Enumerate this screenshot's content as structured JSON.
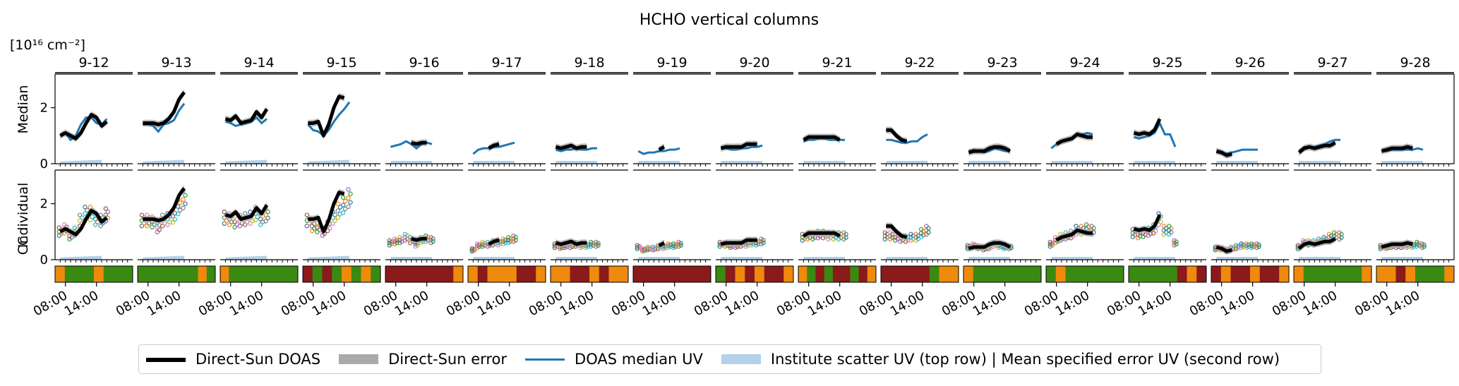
{
  "chart_data": {
    "type": "line",
    "title": "HCHO  vertical columns",
    "unit_label": "[10¹⁶ cm⁻²]",
    "row_labels": [
      "Median",
      "Individual",
      "CC"
    ],
    "days": [
      "9-12",
      "9-13",
      "9-14",
      "9-15",
      "9-16",
      "9-17",
      "9-18",
      "9-19",
      "9-20",
      "9-21",
      "9-22",
      "9-23",
      "9-24",
      "9-25",
      "9-26",
      "9-27",
      "9-28"
    ],
    "x_tick_labels": [
      "08:00",
      "14:00"
    ],
    "x_range_hours": [
      6,
      21
    ],
    "y_range": [
      0,
      3.2
    ],
    "y_ticks": [
      0,
      2
    ],
    "colors": {
      "direct_sun": "#000000",
      "direct_sun_error": "#aaaaaa",
      "doas_median": "#1f77b4",
      "scatter": "#b3d1ea",
      "cc_green": "#3a8a12",
      "cc_orange": "#ef8a0c",
      "cc_darkred": "#8b1a1a"
    },
    "legend": [
      {
        "key": "direct_sun",
        "label": "Direct-Sun DOAS"
      },
      {
        "key": "direct_sun_error",
        "label": "Direct-Sun error"
      },
      {
        "key": "doas_median",
        "label": "DOAS median UV"
      },
      {
        "key": "scatter",
        "label": "Institute scatter UV (top row) | Mean specified error UV (second row)"
      }
    ],
    "series": {
      "doas_median": [
        [
          [
            7,
            1.0
          ],
          [
            8,
            1.1
          ],
          [
            9,
            0.85
          ],
          [
            10,
            1.0
          ],
          [
            11,
            1.4
          ],
          [
            12,
            1.65
          ],
          [
            13,
            1.65
          ],
          [
            14,
            1.45
          ],
          [
            15,
            1.4
          ],
          [
            16,
            1.6
          ]
        ],
        [
          [
            7,
            1.4
          ],
          [
            8,
            1.4
          ],
          [
            9,
            1.35
          ],
          [
            10,
            1.15
          ],
          [
            11,
            1.4
          ],
          [
            12,
            1.45
          ],
          [
            13,
            1.55
          ],
          [
            14,
            1.9
          ],
          [
            15,
            2.15
          ]
        ],
        [
          [
            7,
            1.5
          ],
          [
            8,
            1.45
          ],
          [
            9,
            1.35
          ],
          [
            10,
            1.4
          ],
          [
            11,
            1.45
          ],
          [
            12,
            1.5
          ],
          [
            13,
            1.65
          ],
          [
            14,
            1.45
          ],
          [
            15,
            1.6
          ]
        ],
        [
          [
            7,
            1.4
          ],
          [
            8,
            1.2
          ],
          [
            9,
            1.15
          ],
          [
            10,
            1.0
          ],
          [
            11,
            1.2
          ],
          [
            12,
            1.5
          ],
          [
            13,
            1.75
          ],
          [
            14,
            1.95
          ],
          [
            15,
            2.2
          ]
        ],
        [
          [
            7,
            0.6
          ],
          [
            8,
            0.65
          ],
          [
            9,
            0.7
          ],
          [
            10,
            0.8
          ],
          [
            11,
            0.7
          ],
          [
            12,
            0.55
          ],
          [
            13,
            0.7
          ],
          [
            14,
            0.75
          ],
          [
            15,
            0.7
          ]
        ],
        [
          [
            7,
            0.35
          ],
          [
            8,
            0.5
          ],
          [
            9,
            0.55
          ],
          [
            10,
            0.55
          ],
          [
            11,
            0.6
          ],
          [
            12,
            0.6
          ],
          [
            13,
            0.65
          ],
          [
            14,
            0.7
          ],
          [
            15,
            0.75
          ]
        ],
        [
          [
            7,
            0.5
          ],
          [
            8,
            0.45
          ],
          [
            9,
            0.5
          ],
          [
            10,
            0.5
          ],
          [
            11,
            0.55
          ],
          [
            12,
            0.5
          ],
          [
            13,
            0.5
          ],
          [
            14,
            0.55
          ],
          [
            15,
            0.55
          ]
        ],
        [
          [
            7,
            0.45
          ],
          [
            8,
            0.35
          ],
          [
            9,
            0.4
          ],
          [
            10,
            0.4
          ],
          [
            11,
            0.45
          ],
          [
            12,
            0.45
          ],
          [
            13,
            0.5
          ],
          [
            14,
            0.5
          ],
          [
            15,
            0.55
          ]
        ],
        [
          [
            7,
            0.55
          ],
          [
            8,
            0.55
          ],
          [
            9,
            0.5
          ],
          [
            10,
            0.5
          ],
          [
            11,
            0.55
          ],
          [
            12,
            0.55
          ],
          [
            13,
            0.6
          ],
          [
            14,
            0.6
          ],
          [
            15,
            0.65
          ]
        ],
        [
          [
            7,
            0.8
          ],
          [
            8,
            0.85
          ],
          [
            9,
            0.85
          ],
          [
            10,
            0.9
          ],
          [
            11,
            0.9
          ],
          [
            12,
            0.85
          ],
          [
            13,
            0.85
          ],
          [
            14,
            0.85
          ],
          [
            15,
            0.85
          ]
        ],
        [
          [
            7,
            0.85
          ],
          [
            8,
            0.85
          ],
          [
            9,
            0.8
          ],
          [
            10,
            0.75
          ],
          [
            11,
            0.75
          ],
          [
            12,
            0.8
          ],
          [
            13,
            0.8
          ],
          [
            14,
            0.95
          ],
          [
            15,
            1.05
          ]
        ],
        [
          [
            7,
            0.45
          ],
          [
            8,
            0.5
          ],
          [
            9,
            0.45
          ],
          [
            10,
            0.4
          ],
          [
            11,
            0.45
          ],
          [
            12,
            0.55
          ],
          [
            13,
            0.5
          ],
          [
            14,
            0.45
          ],
          [
            15,
            0.45
          ]
        ],
        [
          [
            7,
            0.55
          ],
          [
            8,
            0.7
          ],
          [
            9,
            0.8
          ],
          [
            10,
            0.85
          ],
          [
            11,
            0.9
          ],
          [
            12,
            1.05
          ],
          [
            13,
            1.05
          ],
          [
            14,
            1.1
          ],
          [
            15,
            1.05
          ]
        ],
        [
          [
            7,
            0.95
          ],
          [
            8,
            0.9
          ],
          [
            9,
            0.95
          ],
          [
            10,
            1.0
          ],
          [
            11,
            1.1
          ],
          [
            12,
            1.45
          ],
          [
            13,
            1.05
          ],
          [
            14,
            1.05
          ],
          [
            15,
            0.6
          ]
        ],
        [
          [
            7,
            0.4
          ],
          [
            8,
            0.4
          ],
          [
            9,
            0.35
          ],
          [
            10,
            0.4
          ],
          [
            11,
            0.45
          ],
          [
            12,
            0.5
          ],
          [
            13,
            0.5
          ],
          [
            14,
            0.5
          ],
          [
            15,
            0.5
          ]
        ],
        [
          [
            7,
            0.45
          ],
          [
            8,
            0.6
          ],
          [
            9,
            0.6
          ],
          [
            10,
            0.6
          ],
          [
            11,
            0.65
          ],
          [
            12,
            0.7
          ],
          [
            13,
            0.8
          ],
          [
            14,
            0.85
          ],
          [
            15,
            0.85
          ]
        ],
        [
          [
            7,
            0.45
          ],
          [
            8,
            0.45
          ],
          [
            9,
            0.5
          ],
          [
            10,
            0.5
          ],
          [
            11,
            0.5
          ],
          [
            12,
            0.5
          ],
          [
            13,
            0.5
          ],
          [
            14,
            0.55
          ],
          [
            15,
            0.5
          ]
        ]
      ],
      "direct_sun": [
        [
          [
            7,
            1.0
          ],
          [
            8,
            1.1
          ],
          [
            9,
            1.0
          ],
          [
            10,
            0.9
          ],
          [
            11,
            1.1
          ],
          [
            12,
            1.45
          ],
          [
            13,
            1.75
          ],
          [
            14,
            1.65
          ],
          [
            15,
            1.35
          ],
          [
            16,
            1.5
          ]
        ],
        [
          [
            7,
            1.45
          ],
          [
            8,
            1.45
          ],
          [
            9,
            1.45
          ],
          [
            10,
            1.4
          ],
          [
            11,
            1.45
          ],
          [
            12,
            1.6
          ],
          [
            13,
            1.85
          ],
          [
            14,
            2.3
          ],
          [
            15,
            2.55
          ]
        ],
        [
          [
            7,
            1.6
          ],
          [
            8,
            1.55
          ],
          [
            9,
            1.7
          ],
          [
            10,
            1.45
          ],
          [
            11,
            1.5
          ],
          [
            12,
            1.55
          ],
          [
            13,
            1.85
          ],
          [
            14,
            1.65
          ],
          [
            15,
            1.95
          ]
        ],
        [
          [
            7,
            1.45
          ],
          [
            8,
            1.45
          ],
          [
            9,
            1.5
          ],
          [
            10,
            1.0
          ],
          [
            11,
            1.4
          ],
          [
            12,
            2.0
          ],
          [
            13,
            2.4
          ],
          [
            14,
            2.35
          ]
        ],
        [
          [
            11,
            0.75
          ],
          [
            12,
            0.7
          ],
          [
            13,
            0.75
          ],
          [
            14,
            0.75
          ]
        ],
        [
          [
            10,
            0.55
          ],
          [
            11,
            0.65
          ],
          [
            12,
            0.7
          ]
        ],
        [
          [
            7,
            0.6
          ],
          [
            8,
            0.55
          ],
          [
            9,
            0.6
          ],
          [
            10,
            0.65
          ],
          [
            11,
            0.55
          ],
          [
            12,
            0.6
          ],
          [
            13,
            0.6
          ]
        ],
        [
          [
            11,
            0.5
          ],
          [
            12,
            0.6
          ]
        ],
        [
          [
            7,
            0.55
          ],
          [
            8,
            0.6
          ],
          [
            11,
            0.6
          ],
          [
            12,
            0.7
          ],
          [
            13,
            0.7
          ],
          [
            14,
            0.7
          ]
        ],
        [
          [
            7,
            0.85
          ],
          [
            8,
            0.95
          ],
          [
            13,
            0.95
          ],
          [
            14,
            0.85
          ]
        ],
        [
          [
            7,
            1.2
          ],
          [
            8,
            1.2
          ],
          [
            9,
            1.0
          ],
          [
            10,
            0.85
          ],
          [
            11,
            0.8
          ]
        ],
        [
          [
            7,
            0.4
          ],
          [
            8,
            0.45
          ],
          [
            9,
            0.45
          ],
          [
            10,
            0.45
          ],
          [
            11,
            0.55
          ],
          [
            12,
            0.6
          ],
          [
            13,
            0.6
          ],
          [
            14,
            0.55
          ],
          [
            15,
            0.45
          ]
        ],
        [
          [
            8,
            0.7
          ],
          [
            9,
            0.8
          ],
          [
            10,
            0.85
          ],
          [
            11,
            0.9
          ],
          [
            12,
            1.05
          ],
          [
            13,
            1.0
          ],
          [
            14,
            0.95
          ],
          [
            15,
            0.95
          ]
        ],
        [
          [
            7,
            1.1
          ],
          [
            8,
            1.05
          ],
          [
            9,
            1.1
          ],
          [
            10,
            1.05
          ],
          [
            11,
            1.2
          ],
          [
            12,
            1.6
          ]
        ],
        [
          [
            7,
            0.45
          ],
          [
            8,
            0.4
          ],
          [
            9,
            0.3
          ],
          [
            10,
            0.35
          ]
        ],
        [
          [
            7,
            0.4
          ],
          [
            8,
            0.55
          ],
          [
            9,
            0.6
          ],
          [
            10,
            0.55
          ],
          [
            11,
            0.6
          ],
          [
            12,
            0.65
          ],
          [
            13,
            0.65
          ],
          [
            14,
            0.75
          ]
        ],
        [
          [
            7,
            0.45
          ],
          [
            8,
            0.5
          ],
          [
            9,
            0.55
          ],
          [
            10,
            0.55
          ],
          [
            11,
            0.55
          ],
          [
            12,
            0.6
          ],
          [
            13,
            0.55
          ]
        ]
      ]
    },
    "cloud_classification": [
      [
        "orange",
        "green",
        "green",
        "green",
        "orange",
        "green",
        "green",
        "green"
      ],
      [
        "green",
        "green",
        "green",
        "green",
        "green",
        "green",
        "green",
        "orange",
        "green"
      ],
      [
        "orange",
        "green",
        "green",
        "green",
        "green",
        "green",
        "green",
        "green",
        "green"
      ],
      [
        "darkred",
        "green",
        "darkred",
        "green",
        "orange",
        "green",
        "orange",
        "green"
      ],
      [
        "darkred",
        "darkred",
        "darkred",
        "darkred",
        "darkred",
        "darkred",
        "darkred",
        "orange"
      ],
      [
        "orange",
        "darkred",
        "orange",
        "orange",
        "orange",
        "darkred",
        "darkred",
        "orange"
      ],
      [
        "orange",
        "orange",
        "darkred",
        "darkred",
        "orange",
        "darkred",
        "orange",
        "orange"
      ],
      [
        "darkred",
        "darkred",
        "darkred",
        "darkred",
        "darkred",
        "darkred",
        "darkred",
        "darkred"
      ],
      [
        "green",
        "darkred",
        "orange",
        "darkred",
        "orange",
        "darkred",
        "darkred",
        "orange"
      ],
      [
        "orange",
        "green",
        "darkred",
        "green",
        "darkred",
        "darkred",
        "green",
        "darkred",
        "orange"
      ],
      [
        "darkred",
        "darkred",
        "darkred",
        "darkred",
        "darkred",
        "green",
        "orange",
        "orange"
      ],
      [
        "orange",
        "green",
        "green",
        "green",
        "green",
        "green",
        "green",
        "green"
      ],
      [
        "green",
        "orange",
        "green",
        "green",
        "green",
        "green",
        "green",
        "green"
      ],
      [
        "green",
        "green",
        "green",
        "green",
        "green",
        "darkred",
        "orange",
        "darkred"
      ],
      [
        "darkred",
        "orange",
        "darkred",
        "darkred",
        "orange",
        "darkred",
        "darkred",
        "orange"
      ],
      [
        "orange",
        "green",
        "green",
        "green",
        "green",
        "green",
        "green",
        "orange"
      ],
      [
        "orange",
        "orange",
        "darkred",
        "orange",
        "green",
        "green",
        "green",
        "orange"
      ]
    ]
  }
}
